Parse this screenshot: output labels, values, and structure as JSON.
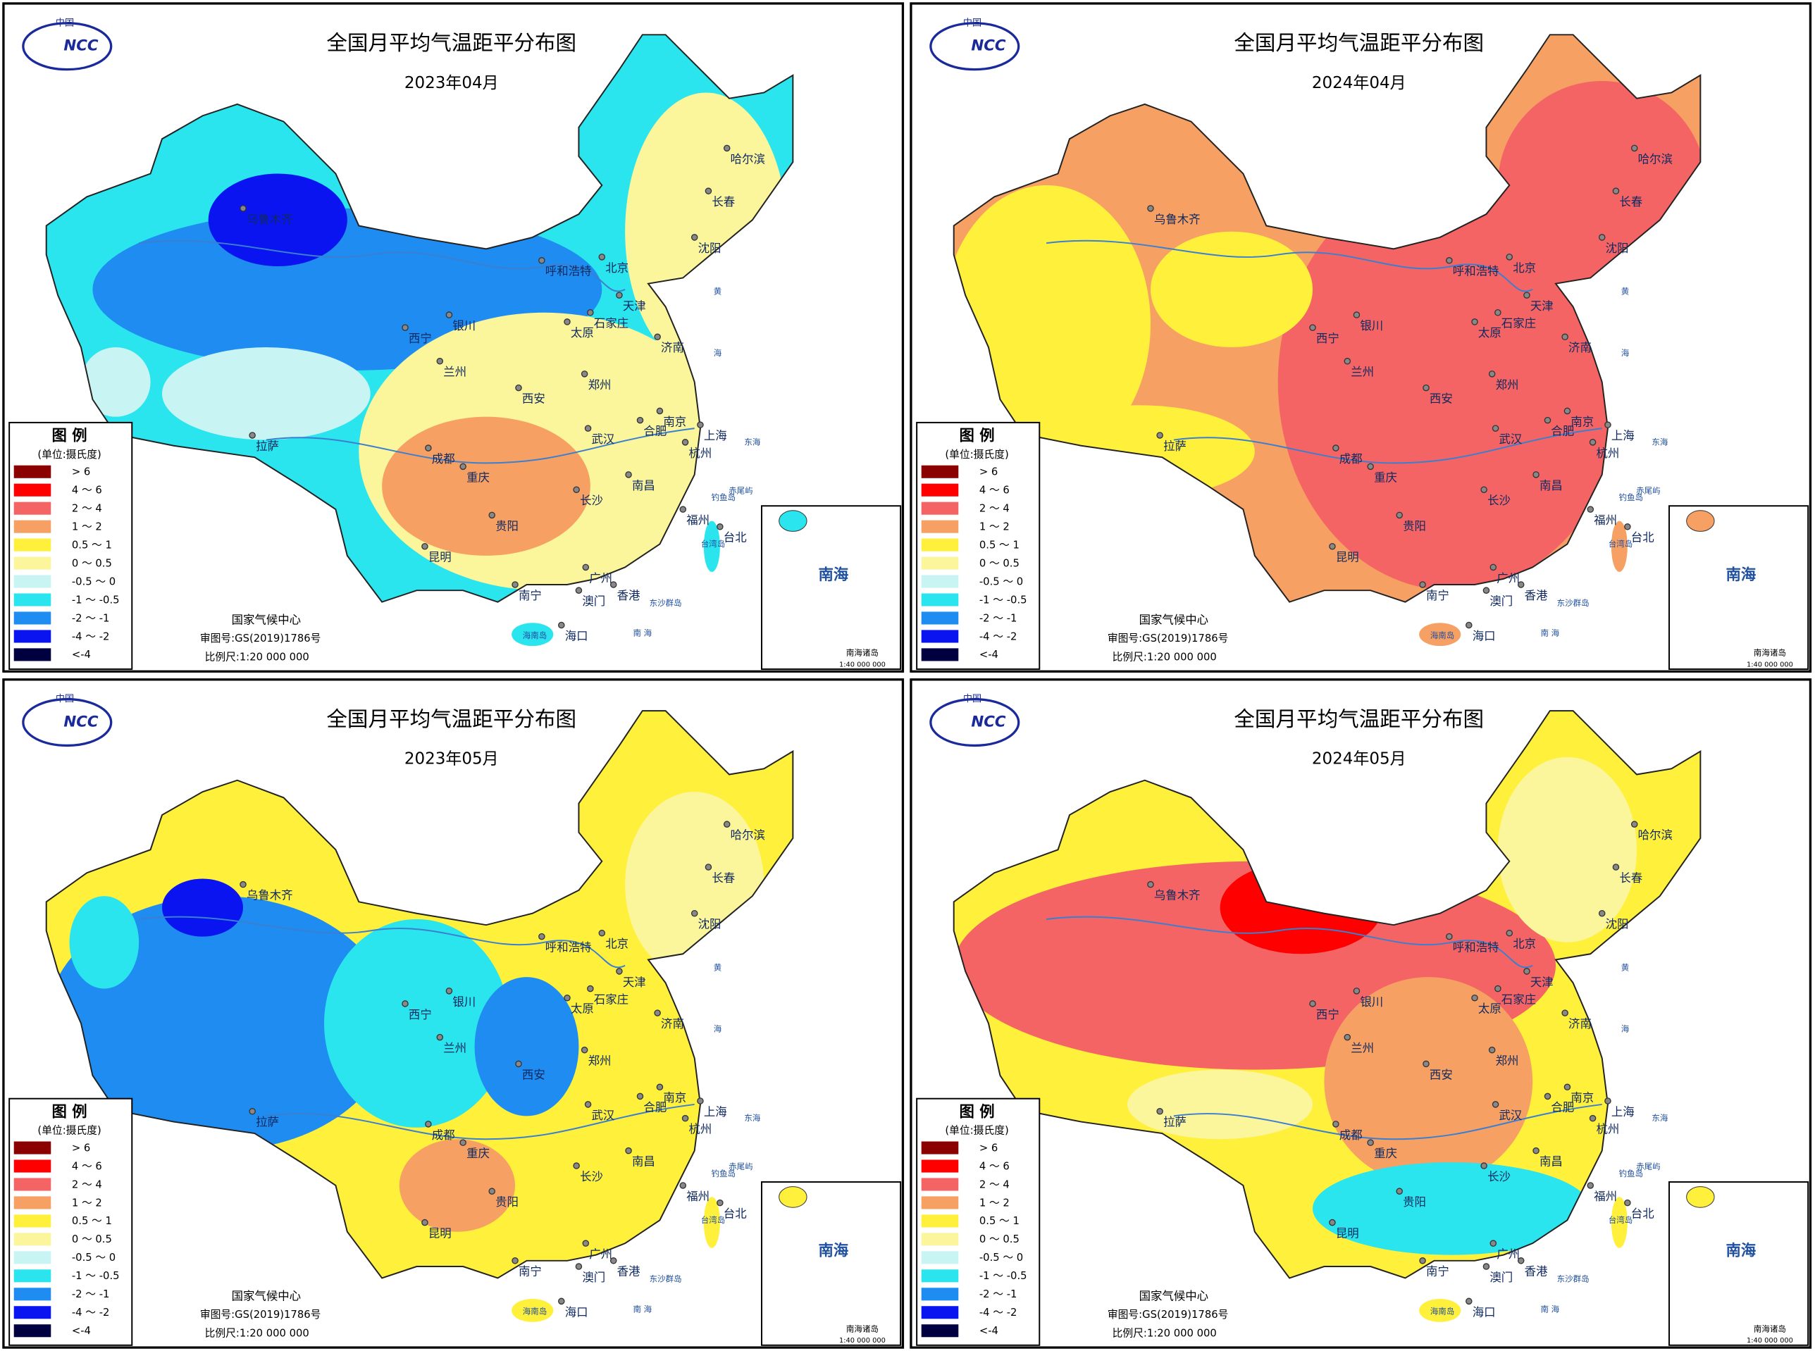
{
  "panels": [
    {
      "title": "全国月平均气温距平分布图",
      "date": "2023年04月"
    },
    {
      "title": "全国月平均气温距平分布图",
      "date": "2024年04月"
    },
    {
      "title": "全国月平均气温距平分布图",
      "date": "2023年05月"
    },
    {
      "title": "全国月平均气温距平分布图",
      "date": "2024年05月"
    }
  ],
  "logo": {
    "top": "中国",
    "mark": "NCC"
  },
  "legend": {
    "title": "图 例",
    "unit": "(单位:摄氏度)",
    "classes": [
      {
        "label": "> 6",
        "color": "#8b0000"
      },
      {
        "label": "4 ～ 6",
        "color": "#ff0000"
      },
      {
        "label": "2 ～ 4",
        "color": "#f56464"
      },
      {
        "label": "1 ～ 2",
        "color": "#f7a064"
      },
      {
        "label": "0.5 ～ 1",
        "color": "#fff03c"
      },
      {
        "label": "0 ～ 0.5",
        "color": "#fbf59c"
      },
      {
        "label": "-0.5 ～ 0",
        "color": "#c8f5f3"
      },
      {
        "label": "-1 ～ -0.5",
        "color": "#2ae4ee"
      },
      {
        "label": "-2 ～ -1",
        "color": "#1e8cf0"
      },
      {
        "label": "-4 ～ -2",
        "color": "#0a14f0"
      },
      {
        "label": "<-4",
        "color": "#000040"
      }
    ]
  },
  "footer": {
    "org": "国家气候中心",
    "approval": "审图号:GS(2019)1786号",
    "scale": "比例尺:1:20 000 000"
  },
  "cities": [
    "乌鲁木齐",
    "呼和浩特",
    "北京",
    "天津",
    "石家庄",
    "太原",
    "银川",
    "西宁",
    "兰州",
    "济南",
    "郑州",
    "西安",
    "南京",
    "合肥",
    "上海",
    "武汉",
    "杭州",
    "拉萨",
    "成都",
    "重庆",
    "南昌",
    "长沙",
    "贵阳",
    "福州",
    "台北",
    "昆明",
    "南宁",
    "广州",
    "澳门",
    "香港",
    "海口",
    "沈阳",
    "长春",
    "哈尔滨"
  ],
  "sea_labels": {
    "east_sea": "东海",
    "yellow_1": "黄",
    "yellow_2": "海",
    "dongsha": "东沙群岛",
    "south_sea": "南 海",
    "chiwei": "赤尾屿",
    "diaoyu": "钓鱼岛",
    "taiwan": "台湾岛",
    "hainan": "海南岛"
  },
  "inset": {
    "title": "南海",
    "islands": "南海诸岛",
    "scale": "1:40 000 000"
  }
}
